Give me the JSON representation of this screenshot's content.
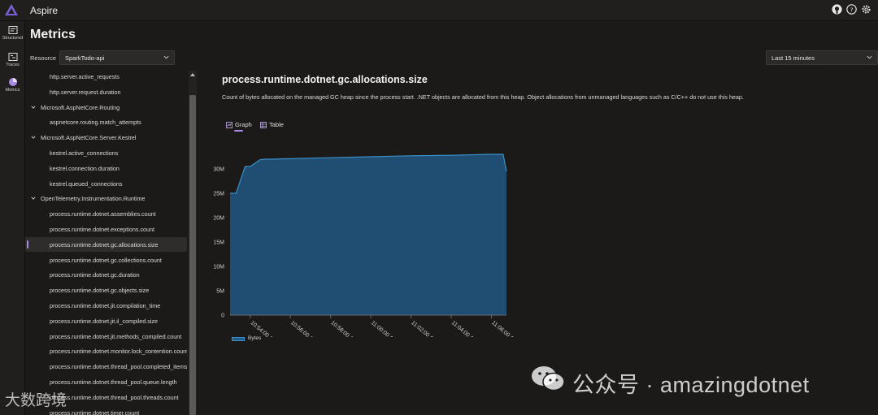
{
  "app": {
    "title": "Aspire"
  },
  "top_icons": [
    "github-icon",
    "help-icon",
    "settings-icon"
  ],
  "rail": [
    {
      "label": "Structured",
      "icon": "structured-logs-icon"
    },
    {
      "label": "Traces",
      "icon": "traces-icon"
    },
    {
      "label": "Metrics",
      "icon": "metrics-icon"
    }
  ],
  "page": {
    "title": "Metrics"
  },
  "filters": {
    "resource_label": "Resource",
    "resource_value": "SparkTodo-api",
    "time_value": "Last 15 minutes"
  },
  "tree": [
    {
      "type": "leaf",
      "label": "http.server.active_requests"
    },
    {
      "type": "leaf",
      "label": "http.server.request.duration"
    },
    {
      "type": "group",
      "label": "Microsoft.AspNetCore.Routing"
    },
    {
      "type": "leaf",
      "label": "aspnetcore.routing.match_attempts"
    },
    {
      "type": "group",
      "label": "Microsoft.AspNetCore.Server.Kestrel"
    },
    {
      "type": "leaf",
      "label": "kestrel.active_connections"
    },
    {
      "type": "leaf",
      "label": "kestrel.connection.duration"
    },
    {
      "type": "leaf",
      "label": "kestrel.queued_connections"
    },
    {
      "type": "group",
      "label": "OpenTelemetry.Instrumentation.Runtime"
    },
    {
      "type": "leaf",
      "label": "process.runtime.dotnet.assemblies.count"
    },
    {
      "type": "leaf",
      "label": "process.runtime.dotnet.exceptions.count"
    },
    {
      "type": "leaf",
      "label": "process.runtime.dotnet.gc.allocations.size",
      "selected": true
    },
    {
      "type": "leaf",
      "label": "process.runtime.dotnet.gc.collections.count"
    },
    {
      "type": "leaf",
      "label": "process.runtime.dotnet.gc.duration"
    },
    {
      "type": "leaf",
      "label": "process.runtime.dotnet.gc.objects.size"
    },
    {
      "type": "leaf",
      "label": "process.runtime.dotnet.jit.compilation_time"
    },
    {
      "type": "leaf",
      "label": "process.runtime.dotnet.jit.il_compiled.size"
    },
    {
      "type": "leaf",
      "label": "process.runtime.dotnet.jit.methods_compiled.count"
    },
    {
      "type": "leaf",
      "label": "process.runtime.dotnet.monitor.lock_contention.count"
    },
    {
      "type": "leaf",
      "label": "process.runtime.dotnet.thread_pool.completed_items.count"
    },
    {
      "type": "leaf",
      "label": "process.runtime.dotnet.thread_pool.queue.length"
    },
    {
      "type": "leaf",
      "label": "process.runtime.dotnet.thread_pool.threads.count"
    },
    {
      "type": "leaf",
      "label": "process.runtime.dotnet.timer.count"
    }
  ],
  "metric": {
    "title": "process.runtime.dotnet.gc.allocations.size",
    "description": "Count of bytes allocated on the managed GC heap since the process start. .NET objects are allocated from this heap. Object allocations from unmanaged languages such as C/C++ do not use this heap.",
    "tab_graph": "Graph",
    "tab_table": "Table",
    "legend": "Bytes"
  },
  "chart_data": {
    "type": "area",
    "x": [
      "10:53:00",
      "10:53:18",
      "10:53:45",
      "10:54:00",
      "10:54:30",
      "10:54:45",
      "10:55:00",
      "10:56:00",
      "10:58:00",
      "11:00:00",
      "11:02:00",
      "11:04:00",
      "11:06:00",
      "11:06:35",
      "11:06:45"
    ],
    "values": [
      25000000,
      25000000,
      30500000,
      30500000,
      31900000,
      32000000,
      32000000,
      32100000,
      32300000,
      32500000,
      32700000,
      32800000,
      33000000,
      33000000,
      29500000
    ],
    "series": [
      {
        "name": "Bytes",
        "values": [
          25000000,
          25000000,
          30500000,
          30500000,
          31900000,
          32000000,
          32000000,
          32100000,
          32300000,
          32500000,
          32700000,
          32800000,
          33000000,
          33000000,
          29500000
        ]
      }
    ],
    "x_tick_labels": [
      "10:54:00 AM",
      "10:56:00 AM",
      "10:58:00 AM",
      "11:00:00 AM",
      "11:02:00 AM",
      "11:04:00 AM",
      "11:06:00 AM"
    ],
    "y_tick_labels": [
      "0",
      "5M",
      "10M",
      "15M",
      "20M",
      "25M",
      "30M"
    ],
    "ylim": [
      0,
      35000000
    ],
    "xlabel": "",
    "ylabel": "",
    "grid": false,
    "legend": "bottom-left",
    "colors": {
      "fill": "#1f4e72",
      "line": "#3a8fc8"
    }
  },
  "watermark": {
    "right": "公众号 · amazingdotnet",
    "left": "大数跨境"
  }
}
